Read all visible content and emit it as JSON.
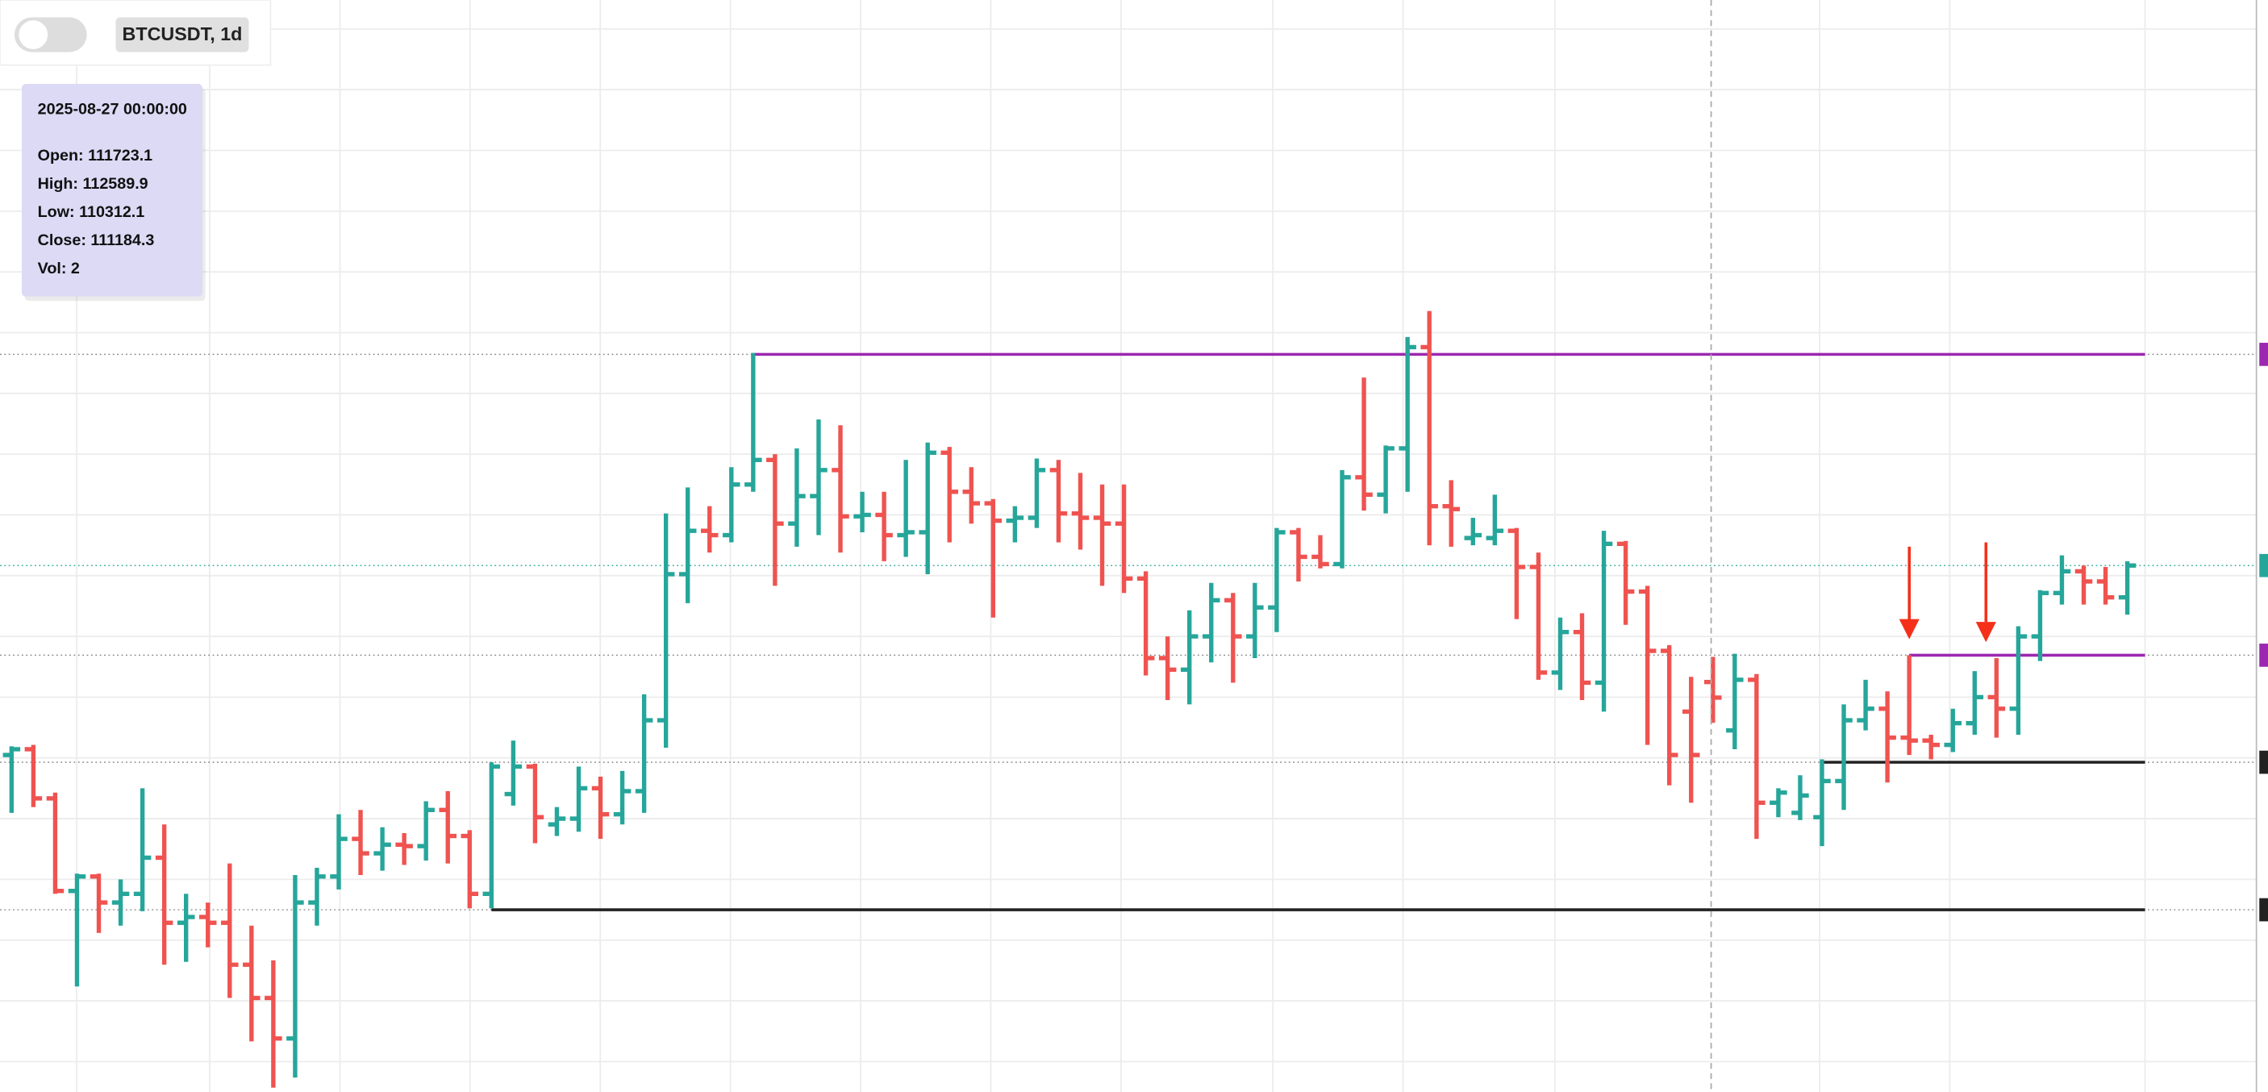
{
  "header": {
    "symbol": "BTCUSDT, 1d"
  },
  "tooltip": {
    "date": "2025-08-27 00:00:00",
    "lines": [
      "Open: 111723.1",
      "High: 112589.9",
      "Low: 110312.1",
      "Close: 111184.3",
      "Vol: 2"
    ]
  },
  "chart_data": {
    "type": "ohlc",
    "open": [
      109200,
      109400,
      107700,
      104500,
      105000,
      104100,
      104400,
      105650,
      103400,
      103600,
      103400,
      101950,
      100800,
      99400,
      104100,
      105000,
      106300,
      105800,
      106100,
      106050,
      107300,
      106400,
      104400,
      107850,
      108800,
      106800,
      107000,
      108050,
      107150,
      107950,
      110400,
      115450,
      116950,
      116800,
      118550,
      119400,
      117200,
      118150,
      119050,
      117450,
      117500,
      116800,
      116900,
      119650,
      118300,
      117900,
      117300,
      117400,
      119050,
      117550,
      117400,
      117200,
      115300,
      112550,
      112150,
      113300,
      114550,
      113300,
      114300,
      116900,
      116050,
      115800,
      118800,
      118200,
      119800,
      123300,
      117800,
      116700,
      116700,
      116950,
      115700,
      112050,
      113450,
      111700,
      116500,
      114850,
      112800,
      110700,
      111723.1,
      110050,
      111800,
      107550,
      107200,
      107050,
      108300,
      110400,
      110800,
      109800,
      109700,
      109550,
      110300,
      111200,
      110800,
      113300,
      114800,
      115550,
      115200,
      114650
    ],
    "high": [
      109500,
      109550,
      107900,
      105100,
      105100,
      104900,
      108050,
      106800,
      104400,
      104100,
      105450,
      103300,
      102100,
      105050,
      105300,
      107150,
      107300,
      106700,
      106500,
      107600,
      107950,
      106600,
      108950,
      109700,
      108900,
      107400,
      108800,
      108450,
      108650,
      111300,
      117550,
      118450,
      117800,
      119150,
      123100,
      119600,
      119800,
      120800,
      120600,
      118300,
      118300,
      119400,
      120000,
      119850,
      119150,
      118050,
      117800,
      119450,
      119400,
      118950,
      118550,
      118550,
      115550,
      113300,
      114200,
      115150,
      114800,
      115150,
      117050,
      117050,
      116800,
      119050,
      122250,
      119900,
      123650,
      124550,
      118700,
      117400,
      118200,
      117050,
      116200,
      113950,
      114100,
      116950,
      116600,
      115050,
      113000,
      111900,
      112589.9,
      112700,
      112000,
      108050,
      108500,
      109050,
      110950,
      111800,
      111400,
      112650,
      109900,
      110800,
      112100,
      112550,
      113650,
      114900,
      116100,
      115750,
      115700,
      115900
    ],
    "low": [
      107200,
      107400,
      104400,
      101200,
      103050,
      103300,
      103800,
      101950,
      102050,
      102550,
      100800,
      99300,
      97700,
      98050,
      103300,
      104550,
      105050,
      105200,
      105400,
      105550,
      105450,
      103900,
      103900,
      107450,
      106150,
      106400,
      106550,
      106300,
      106800,
      107200,
      109450,
      114450,
      116200,
      116550,
      118300,
      115050,
      116400,
      116800,
      116200,
      116900,
      115900,
      116050,
      115450,
      116550,
      117200,
      113950,
      116550,
      117050,
      116550,
      116300,
      115050,
      114800,
      111950,
      111100,
      110950,
      112400,
      111700,
      112550,
      113450,
      115200,
      115650,
      115650,
      117650,
      117550,
      118300,
      116450,
      116400,
      116450,
      116450,
      113900,
      111800,
      111450,
      111100,
      110700,
      113700,
      109550,
      108150,
      107550,
      110312.1,
      109400,
      106300,
      107050,
      106950,
      106050,
      107300,
      110050,
      108250,
      109200,
      109050,
      109300,
      109900,
      109800,
      109900,
      112450,
      114400,
      114400,
      114400,
      114050
    ],
    "close": [
      109400,
      107700,
      104500,
      105000,
      104100,
      104400,
      105650,
      103400,
      103600,
      103400,
      101950,
      100800,
      99400,
      104100,
      105000,
      106300,
      105800,
      106100,
      106050,
      107300,
      106400,
      104400,
      108800,
      108800,
      107050,
      107000,
      108050,
      107150,
      107950,
      110400,
      115450,
      116950,
      116800,
      118550,
      119400,
      117200,
      118150,
      119050,
      117450,
      117500,
      116800,
      116900,
      119650,
      118300,
      117900,
      117300,
      117400,
      119050,
      117550,
      117400,
      117200,
      115300,
      112550,
      112150,
      113300,
      114550,
      113300,
      114300,
      116900,
      116050,
      115800,
      118800,
      118200,
      119800,
      123300,
      117800,
      117700,
      116800,
      116950,
      115700,
      112050,
      113450,
      111700,
      116500,
      114850,
      112800,
      109200,
      109200,
      111184.3,
      111800,
      107550,
      107900,
      107800,
      108300,
      110400,
      110800,
      109800,
      109700,
      109550,
      110300,
      111200,
      110800,
      113300,
      114800,
      115550,
      115200,
      114650,
      115750
    ],
    "up_color": "#26a69a",
    "down_color": "#ef5350",
    "ylim": [
      97550,
      135300
    ],
    "levels": [
      {
        "value": 123050,
        "color": "#9c27b0",
        "start": 34
      },
      {
        "value": 112650,
        "color": "#9c27b0",
        "start": 87
      },
      {
        "value": 108950,
        "color": "#222222",
        "start": 83
      },
      {
        "value": 103850,
        "color": "#222222",
        "start": 22
      }
    ],
    "grid": true
  }
}
